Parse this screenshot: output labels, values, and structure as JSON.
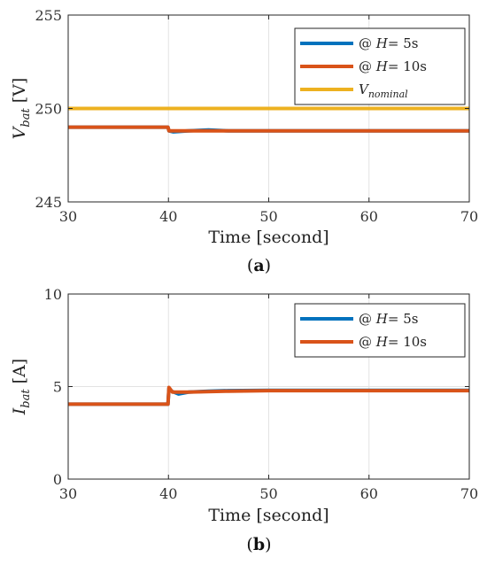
{
  "chart_data": [
    {
      "type": "line",
      "caption": "(a)",
      "caption_letter": "a",
      "xlabel": "Time [second]",
      "ylabel": "V",
      "ylabel_sub": "bat",
      "ylabel_unit": "[V]",
      "xlim": [
        30,
        70
      ],
      "ylim": [
        245,
        255
      ],
      "xticks": [
        30,
        40,
        50,
        60,
        70
      ],
      "yticks": [
        245,
        250,
        255
      ],
      "grid": true,
      "legend_position": "top-right",
      "series": [
        {
          "name": "@ H= 5s",
          "color": "#0072BD",
          "x": [
            30,
            39.95,
            40.05,
            40.5,
            42,
            44,
            46,
            50,
            70
          ],
          "y": [
            249.0,
            249.0,
            248.8,
            248.75,
            248.8,
            248.85,
            248.8,
            248.8,
            248.8
          ]
        },
        {
          "name": "@ H= 10s",
          "color": "#D95319",
          "x": [
            30,
            39.95,
            40.05,
            41,
            50,
            70
          ],
          "y": [
            249.0,
            249.0,
            248.8,
            248.8,
            248.8,
            248.8
          ]
        },
        {
          "name": "V",
          "name_sub": "nominal",
          "color": "#EDB120",
          "x": [
            30,
            70
          ],
          "y": [
            250,
            250
          ]
        }
      ]
    },
    {
      "type": "line",
      "caption": "(b)",
      "caption_letter": "b",
      "xlabel": "Time [second]",
      "ylabel": "I",
      "ylabel_sub": "bat",
      "ylabel_unit": "[A]",
      "xlim": [
        30,
        70
      ],
      "ylim": [
        0,
        10
      ],
      "xticks": [
        30,
        40,
        50,
        60,
        70
      ],
      "yticks": [
        0,
        5,
        10
      ],
      "grid": true,
      "legend_position": "top-right",
      "series": [
        {
          "name": "@ H= 5s",
          "color": "#0072BD",
          "x": [
            30,
            39.95,
            40.05,
            40.3,
            41,
            42,
            44,
            46,
            50,
            70
          ],
          "y": [
            4.05,
            4.05,
            4.9,
            4.75,
            4.6,
            4.7,
            4.75,
            4.78,
            4.8,
            4.8
          ]
        },
        {
          "name": "@ H= 10s",
          "color": "#D95319",
          "x": [
            30,
            39.95,
            40.05,
            40.4,
            42,
            46,
            50,
            70
          ],
          "y": [
            4.05,
            4.05,
            4.95,
            4.7,
            4.7,
            4.75,
            4.78,
            4.78
          ]
        }
      ]
    }
  ]
}
